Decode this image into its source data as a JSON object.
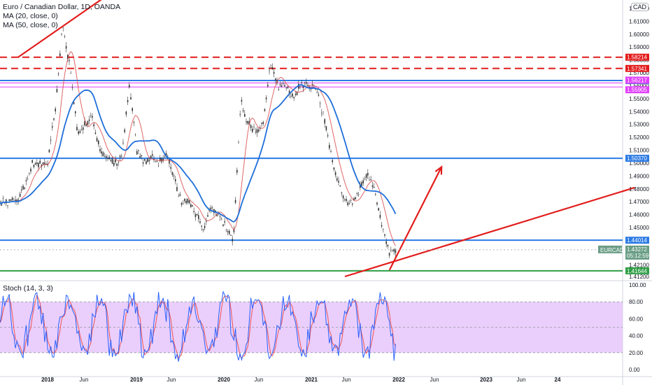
{
  "chart": {
    "symbol_line": "Euro / Canadian Dollar, 1D, OANDA",
    "ma20_label": "MA (20, close, 0)",
    "ma50_label": "MA (50, close, 0)",
    "stoch_label": "Stoch (14, 3, 3)",
    "currency_badge": "CAD",
    "symbol_badge": "EURCAD",
    "price_badge": "1.43272",
    "countdown_badge": "05:12:59",
    "colors": {
      "red_line": "#e31c1c",
      "blue_line": "#2c7be5",
      "magenta_line": "#e040fb",
      "green_line": "#2e9e46",
      "ma_blue": "#1e6fd9",
      "ma_red": "#d84040",
      "stoch_fill": "#e6c5fb",
      "stoch_k": "#2962ff",
      "stoch_d": "#ef5350"
    }
  },
  "chart_data": [
    {
      "type": "candlestick",
      "title": "Euro / Canadian Dollar, 1D, OANDA",
      "y_ticks": [
        "1.62000",
        "1.61000",
        "1.60000",
        "1.59000",
        "1.58000",
        "1.57000",
        "1.56000",
        "1.55000",
        "1.54000",
        "1.53000",
        "1.52000",
        "1.51000",
        "1.50000",
        "1.49000",
        "1.48000",
        "1.47000",
        "1.46000",
        "1.45000",
        "1.44000",
        "1.43000",
        "1.42100",
        "1.41200"
      ],
      "x_ticks": [
        {
          "label": "2018",
          "bold": true
        },
        {
          "label": "Jun",
          "bold": false
        },
        {
          "label": "2019",
          "bold": true
        },
        {
          "label": "Jun",
          "bold": false
        },
        {
          "label": "2020",
          "bold": true
        },
        {
          "label": "Jun",
          "bold": false
        },
        {
          "label": "2021",
          "bold": true
        },
        {
          "label": "Jun",
          "bold": false
        },
        {
          "label": "2022",
          "bold": true
        },
        {
          "label": "Jun",
          "bold": false
        },
        {
          "label": "2023",
          "bold": true
        },
        {
          "label": "Jun",
          "bold": false
        },
        {
          "label": "24",
          "bold": true
        }
      ],
      "horizontal_levels": [
        {
          "value": 1.58214,
          "label": "1.58214",
          "style": "dashed",
          "color": "red"
        },
        {
          "value": 1.57341,
          "label": "1.57341",
          "style": "dashed",
          "color": "red"
        },
        {
          "value": 1.56403,
          "label": "1.56403",
          "style": "solid",
          "color": "blue"
        },
        {
          "value": 1.56217,
          "label": "1.56217",
          "style": "solid",
          "color": "magenta"
        },
        {
          "value": 1.55905,
          "label": "1.55905",
          "style": "solid",
          "color": "magenta"
        },
        {
          "value": 1.5037,
          "label": "1.50370",
          "style": "solid",
          "color": "blue"
        },
        {
          "value": 1.44014,
          "label": "1.44014",
          "style": "solid",
          "color": "blue"
        },
        {
          "value": 1.41644,
          "label": "1.41644",
          "style": "solid",
          "color": "green"
        }
      ],
      "price_path": [
        [
          "2017-09",
          1.47
        ],
        [
          "2017-11",
          1.5
        ],
        [
          "2018-01",
          1.5
        ],
        [
          "2018-02",
          1.54
        ],
        [
          "2018-03",
          1.605
        ],
        [
          "2018-04",
          1.575
        ],
        [
          "2018-05",
          1.525
        ],
        [
          "2018-06",
          1.53
        ],
        [
          "2018-07",
          1.535
        ],
        [
          "2018-08",
          1.51
        ],
        [
          "2018-09",
          1.505
        ],
        [
          "2018-10",
          1.5
        ],
        [
          "2018-11",
          1.505
        ],
        [
          "2018-12",
          1.56
        ],
        [
          "2019-01",
          1.51
        ],
        [
          "2019-02",
          1.5
        ],
        [
          "2019-03",
          1.505
        ],
        [
          "2019-04",
          1.5
        ],
        [
          "2019-05",
          1.505
        ],
        [
          "2019-06",
          1.49
        ],
        [
          "2019-07",
          1.47
        ],
        [
          "2019-08",
          1.47
        ],
        [
          "2019-09",
          1.46
        ],
        [
          "2019-10",
          1.45
        ],
        [
          "2019-11",
          1.465
        ],
        [
          "2019-12",
          1.46
        ],
        [
          "2020-01",
          1.45
        ],
        [
          "2020-02",
          1.44
        ],
        [
          "2020-03",
          1.55
        ],
        [
          "2020-04",
          1.53
        ],
        [
          "2020-05",
          1.525
        ],
        [
          "2020-06",
          1.53
        ],
        [
          "2020-07",
          1.58
        ],
        [
          "2020-08",
          1.56
        ],
        [
          "2020-09",
          1.56
        ],
        [
          "2020-10",
          1.55
        ],
        [
          "2020-11",
          1.56
        ],
        [
          "2020-12",
          1.56
        ],
        [
          "2021-01",
          1.56
        ],
        [
          "2021-02",
          1.54
        ],
        [
          "2021-03",
          1.51
        ],
        [
          "2021-04",
          1.485
        ],
        [
          "2021-05",
          1.47
        ],
        [
          "2021-06",
          1.47
        ],
        [
          "2021-07",
          1.48
        ],
        [
          "2021-08",
          1.49
        ],
        [
          "2021-09",
          1.48
        ],
        [
          "2021-10",
          1.45
        ],
        [
          "2021-11",
          1.43
        ],
        [
          "2021-12",
          1.433
        ]
      ],
      "trendlines": [
        {
          "from": [
            "2017-09",
            1.582
          ],
          "to": [
            "2018-12",
            1.642
          ],
          "color": "red"
        },
        {
          "from": [
            "2021-05",
            1.412
          ],
          "to": [
            "2024-08",
            1.481
          ],
          "color": "red"
        },
        {
          "from": [
            "2021-11",
            1.417
          ],
          "to": [
            "2022-06",
            1.497
          ],
          "color": "red",
          "arrow": true
        }
      ]
    },
    {
      "type": "line",
      "title": "Stoch (14, 3, 3)",
      "y_ticks": [
        "100.00",
        "80.00",
        "60.00",
        "40.00",
        "20.00",
        "0.00"
      ],
      "band": [
        20,
        80
      ],
      "ylim": [
        0,
        100
      ]
    }
  ]
}
